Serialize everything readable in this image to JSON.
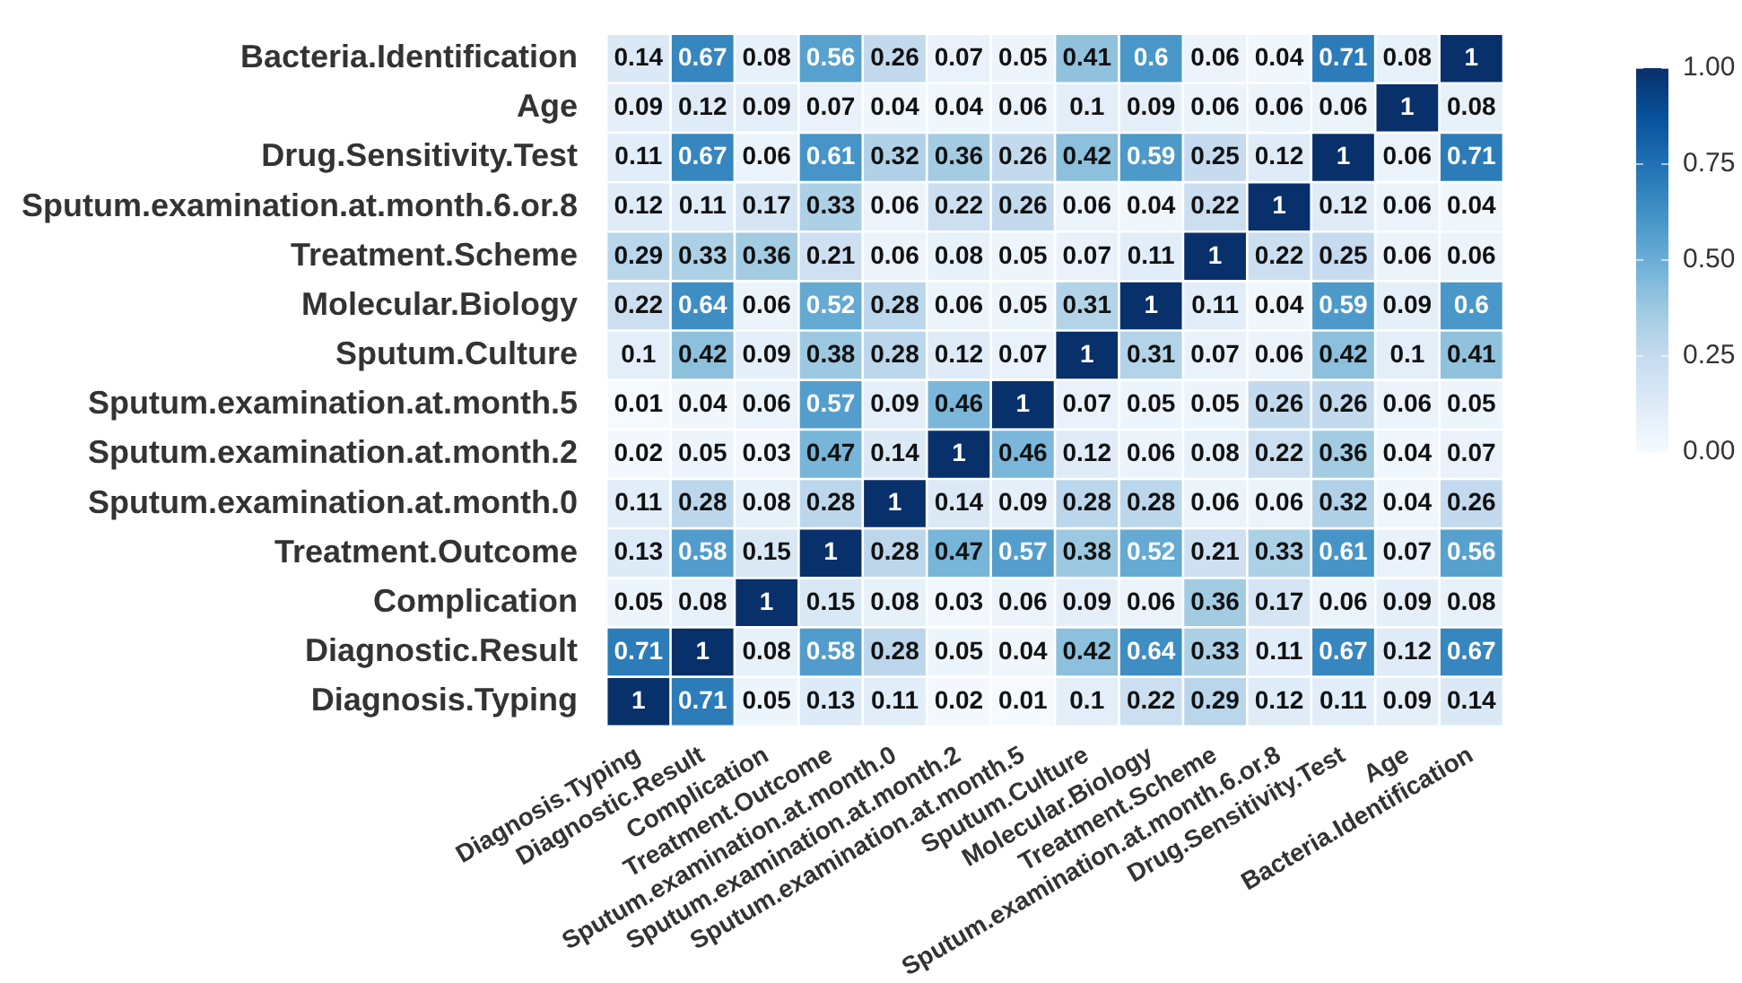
{
  "chart_data": {
    "type": "heatmap",
    "categories": [
      "Diagnosis.Typing",
      "Diagnostic.Result",
      "Complication",
      "Treatment.Outcome",
      "Sputum.examination.at.month.0",
      "Sputum.examination.at.month.2",
      "Sputum.examination.at.month.5",
      "Sputum.Culture",
      "Molecular.Biology",
      "Treatment.Scheme",
      "Sputum.examination.at.month.6.or.8",
      "Drug.Sensitivity.Test",
      "Age",
      "Bacteria.Identification"
    ],
    "y_categories": [
      "Bacteria.Identification",
      "Age",
      "Drug.Sensitivity.Test",
      "Sputum.examination.at.month.6.or.8",
      "Treatment.Scheme",
      "Molecular.Biology",
      "Sputum.Culture",
      "Sputum.examination.at.month.5",
      "Sputum.examination.at.month.2",
      "Sputum.examination.at.month.0",
      "Treatment.Outcome",
      "Complication",
      "Diagnostic.Result",
      "Diagnosis.Typing"
    ],
    "cells": [
      [
        0.14,
        0.67,
        0.08,
        0.56,
        0.26,
        0.07,
        0.05,
        0.41,
        0.6,
        0.06,
        0.04,
        0.71,
        0.08,
        1
      ],
      [
        0.09,
        0.12,
        0.09,
        0.07,
        0.04,
        0.04,
        0.06,
        0.1,
        0.09,
        0.06,
        0.06,
        0.06,
        1,
        0.08
      ],
      [
        0.11,
        0.67,
        0.06,
        0.61,
        0.32,
        0.36,
        0.26,
        0.42,
        0.59,
        0.25,
        0.12,
        1,
        0.06,
        0.71
      ],
      [
        0.12,
        0.11,
        0.17,
        0.33,
        0.06,
        0.22,
        0.26,
        0.06,
        0.04,
        0.22,
        1,
        0.12,
        0.06,
        0.04
      ],
      [
        0.29,
        0.33,
        0.36,
        0.21,
        0.06,
        0.08,
        0.05,
        0.07,
        0.11,
        1,
        0.22,
        0.25,
        0.06,
        0.06
      ],
      [
        0.22,
        0.64,
        0.06,
        0.52,
        0.28,
        0.06,
        0.05,
        0.31,
        1,
        0.11,
        0.04,
        0.59,
        0.09,
        0.6
      ],
      [
        0.1,
        0.42,
        0.09,
        0.38,
        0.28,
        0.12,
        0.07,
        1,
        0.31,
        0.07,
        0.06,
        0.42,
        0.1,
        0.41
      ],
      [
        0.01,
        0.04,
        0.06,
        0.57,
        0.09,
        0.46,
        1,
        0.07,
        0.05,
        0.05,
        0.26,
        0.26,
        0.06,
        0.05
      ],
      [
        0.02,
        0.05,
        0.03,
        0.47,
        0.14,
        1,
        0.46,
        0.12,
        0.06,
        0.08,
        0.22,
        0.36,
        0.04,
        0.07
      ],
      [
        0.11,
        0.28,
        0.08,
        0.28,
        1,
        0.14,
        0.09,
        0.28,
        0.28,
        0.06,
        0.06,
        0.32,
        0.04,
        0.26
      ],
      [
        0.13,
        0.58,
        0.15,
        1,
        0.28,
        0.47,
        0.57,
        0.38,
        0.52,
        0.21,
        0.33,
        0.61,
        0.07,
        0.56
      ],
      [
        0.05,
        0.08,
        1,
        0.15,
        0.08,
        0.03,
        0.06,
        0.09,
        0.06,
        0.36,
        0.17,
        0.06,
        0.09,
        0.08
      ],
      [
        0.71,
        1,
        0.08,
        0.58,
        0.28,
        0.05,
        0.04,
        0.42,
        0.64,
        0.33,
        0.11,
        0.67,
        0.12,
        0.67
      ],
      [
        1,
        0.71,
        0.05,
        0.13,
        0.11,
        0.02,
        0.01,
        0.1,
        0.22,
        0.29,
        0.12,
        0.11,
        0.09,
        0.14
      ]
    ],
    "clim": [
      0,
      1
    ],
    "cticks": [
      {
        "value": 0,
        "label": "0.00"
      },
      {
        "value": 0.25,
        "label": "0.25"
      },
      {
        "value": 0.5,
        "label": "0.50"
      },
      {
        "value": 0.75,
        "label": "0.75"
      },
      {
        "value": 1,
        "label": "1.00"
      }
    ],
    "data_labels": true
  }
}
